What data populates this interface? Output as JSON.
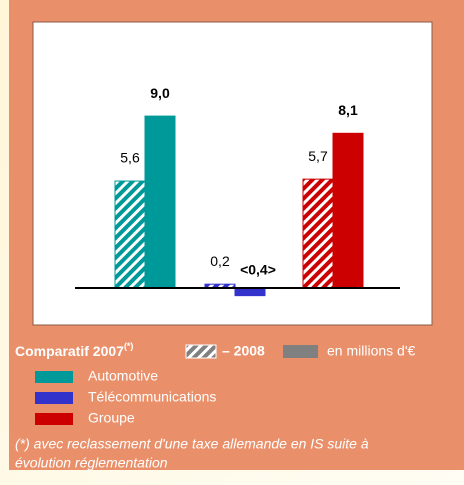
{
  "chart_data": {
    "type": "bar",
    "categories": [
      "Automotive",
      "Télécommunications",
      "Groupe"
    ],
    "category_colors": [
      "#009999",
      "#3333cc",
      "#cc0000"
    ],
    "series": [
      {
        "name": "Comparatif 2007",
        "note_marker": "(*)",
        "pattern": "hatched",
        "values": [
          5.6,
          0.2,
          5.7
        ],
        "value_labels": [
          "5,6",
          "0,2",
          "5,7"
        ]
      },
      {
        "name": "– 2008",
        "pattern": "solid",
        "values": [
          9.0,
          -0.4,
          8.1
        ],
        "value_labels": [
          "9,0",
          "<0,4>",
          "8,1"
        ]
      }
    ],
    "legend_color": "#808080",
    "unit": "en millions d'€",
    "footnote": [
      "(*) avec reclassement d'une taxe allemande en IS suite à",
      "évolution réglementation"
    ]
  }
}
